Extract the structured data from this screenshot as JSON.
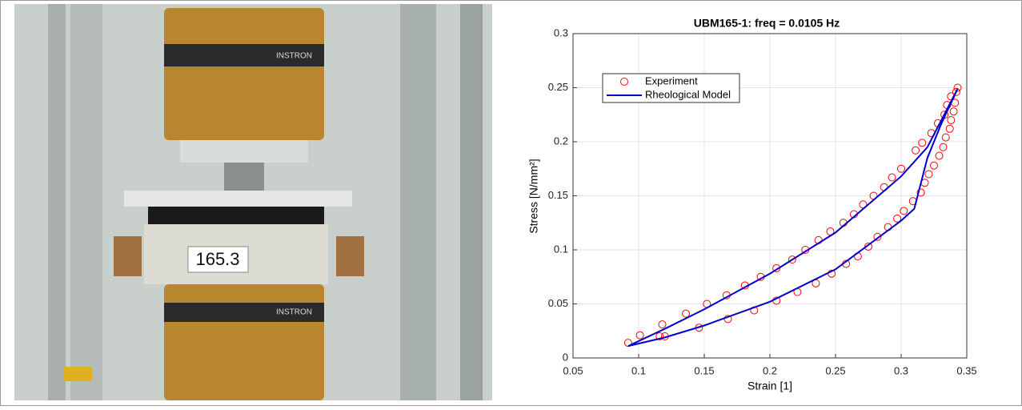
{
  "photo": {
    "labels": [
      "INSTRON",
      "INSTRON",
      "165.3"
    ]
  },
  "chart_data": {
    "type": "line",
    "title": "UBM165-1: freq = 0.0105 Hz",
    "xlabel": "Strain [1]",
    "ylabel": "Stress [N/mm²]",
    "xlim": [
      0.05,
      0.35
    ],
    "xticks": [
      0.05,
      0.1,
      0.15,
      0.2,
      0.25,
      0.3,
      0.35
    ],
    "ylim": [
      0,
      0.3
    ],
    "yticks": [
      0,
      0.05,
      0.1,
      0.15,
      0.2,
      0.25,
      0.3
    ],
    "grid": true,
    "legend": "upper-left",
    "series": [
      {
        "name": "Experiment",
        "type": "scatter",
        "color": "#ff0000",
        "x": [
          0.092,
          0.101,
          0.118,
          0.116,
          0.12,
          0.136,
          0.146,
          0.152,
          0.167,
          0.168,
          0.181,
          0.188,
          0.193,
          0.205,
          0.205,
          0.217,
          0.221,
          0.227,
          0.235,
          0.237,
          0.246,
          0.247,
          0.256,
          0.258,
          0.264,
          0.267,
          0.271,
          0.275,
          0.279,
          0.282,
          0.287,
          0.29,
          0.293,
          0.297,
          0.3,
          0.302,
          0.309,
          0.311,
          0.315,
          0.316,
          0.318,
          0.321,
          0.323,
          0.325,
          0.328,
          0.329,
          0.332,
          0.333,
          0.334,
          0.335,
          0.337,
          0.338,
          0.338,
          0.34,
          0.341,
          0.342,
          0.343
        ],
        "values": [
          0.014,
          0.021,
          0.031,
          0.02,
          0.02,
          0.041,
          0.028,
          0.05,
          0.058,
          0.036,
          0.067,
          0.044,
          0.075,
          0.083,
          0.053,
          0.091,
          0.061,
          0.1,
          0.069,
          0.109,
          0.117,
          0.078,
          0.125,
          0.087,
          0.133,
          0.094,
          0.142,
          0.103,
          0.15,
          0.112,
          0.158,
          0.121,
          0.167,
          0.129,
          0.175,
          0.136,
          0.145,
          0.192,
          0.153,
          0.199,
          0.162,
          0.17,
          0.208,
          0.178,
          0.217,
          0.187,
          0.195,
          0.225,
          0.204,
          0.234,
          0.212,
          0.22,
          0.242,
          0.228,
          0.236,
          0.246,
          0.25
        ]
      },
      {
        "name": "Rheological Model",
        "type": "line",
        "color": "#0000cc",
        "x": [
          0.092,
          0.12,
          0.15,
          0.2,
          0.25,
          0.3,
          0.32,
          0.343,
          0.33,
          0.32,
          0.31,
          0.3,
          0.25,
          0.2,
          0.15,
          0.12,
          0.092
        ],
        "values": [
          0.011,
          0.027,
          0.045,
          0.078,
          0.116,
          0.168,
          0.195,
          0.249,
          0.215,
          0.185,
          0.138,
          0.127,
          0.082,
          0.052,
          0.03,
          0.019,
          0.011
        ]
      }
    ]
  }
}
